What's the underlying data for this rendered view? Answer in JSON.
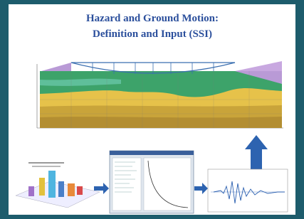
{
  "header": {
    "title_lines": [
      "Hazard and Ground Motion:",
      "Definition and Input (SSI)"
    ]
  }
}
